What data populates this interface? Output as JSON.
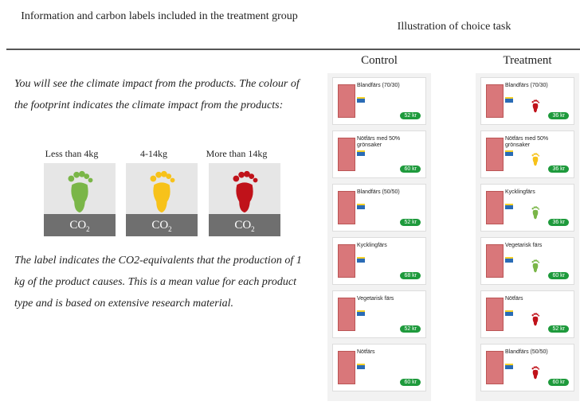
{
  "header": {
    "left_title": "Information and carbon labels included in the treatment group",
    "right_title": "Illustration of choice task"
  },
  "intro": "You will see the climate impact from the products. The colour of the footprint indicates the climate impact from the products:",
  "footprints": [
    {
      "label": "Less than 4kg",
      "color": "#7ab648"
    },
    {
      "label": "4-14kg",
      "color": "#f7c21a"
    },
    {
      "label": "More than 14kg",
      "color": "#c0121a"
    }
  ],
  "co2": {
    "main": "CO",
    "sub": "2"
  },
  "explanation": "The label indicates the CO2-equivalents that the production of 1 kg of the product causes. This is a mean value for each product type and is based on extensive research material.",
  "columns": [
    {
      "title": "Control",
      "cards": [
        {
          "name": "Blandfärs (70/30)",
          "price": "52 kr"
        },
        {
          "name": "Nötfärs med 50% grönsaker",
          "price": "60 kr"
        },
        {
          "name": "Blandfärs (50/50)",
          "price": "52 kr"
        },
        {
          "name": "Kycklingfärs",
          "price": "68 kr"
        },
        {
          "name": "Vegetarisk färs",
          "price": "52 kr"
        },
        {
          "name": "Nötfärs",
          "price": "60 kr"
        }
      ]
    },
    {
      "title": "Treatment",
      "cards": [
        {
          "name": "Blandfärs (70/30)",
          "price": "36 kr",
          "footprint": "#c0121a"
        },
        {
          "name": "Nötfärs med 50% grönsaker",
          "price": "36 kr",
          "footprint": "#f7c21a"
        },
        {
          "name": "Kycklingfärs",
          "price": "36 kr",
          "footprint": "#7ab648"
        },
        {
          "name": "Vegetarisk färs",
          "price": "60 kr",
          "footprint": "#7ab648"
        },
        {
          "name": "Nötfärs",
          "price": "52 kr",
          "footprint": "#c0121a"
        },
        {
          "name": "Blandfärs (50/50)",
          "price": "60 kr",
          "footprint": "#c0121a"
        }
      ]
    }
  ]
}
